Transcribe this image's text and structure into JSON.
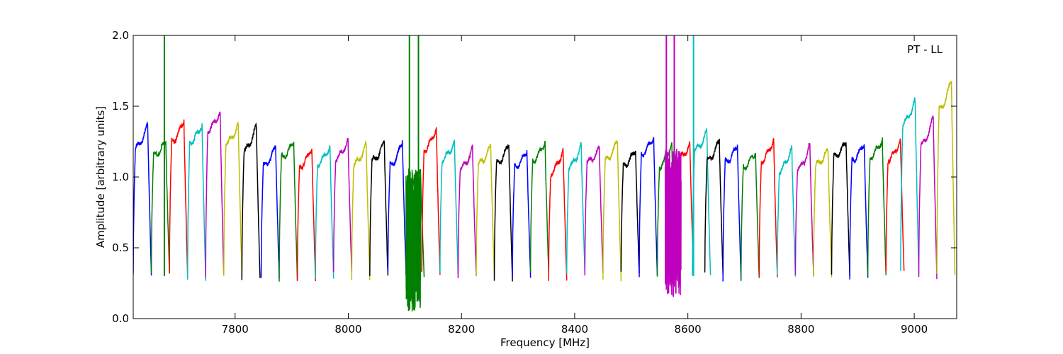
{
  "chart_data": {
    "type": "line",
    "title": "",
    "xlabel": "Frequency [MHz]",
    "ylabel": "Amplitude [arbitrary units]",
    "xlim": [
      7620,
      9075
    ],
    "ylim": [
      0.0,
      2.0
    ],
    "x_ticks": [
      7800,
      8000,
      8200,
      8400,
      8600,
      8800,
      9000
    ],
    "x_tick_labels": [
      "7800",
      "8000",
      "8200",
      "8400",
      "8600",
      "8800",
      "9000"
    ],
    "y_ticks": [
      0.0,
      0.5,
      1.0,
      1.5,
      2.0
    ],
    "y_tick_labels": [
      "0.0",
      "0.5",
      "1.0",
      "1.5",
      "2.0"
    ],
    "grid": false,
    "annotation": "PT - LL",
    "annotation_position": "top-right",
    "channel_width_mhz": 32,
    "series_colors": [
      "#0000ff",
      "#008000",
      "#ff0000",
      "#00bfbf",
      "#bf00bf",
      "#bfbf00",
      "#000000"
    ],
    "channels": [
      {
        "start": 7620,
        "peak": 1.37,
        "color": "#0000ff"
      },
      {
        "start": 7652,
        "peak": 1.25,
        "color": "#008000"
      },
      {
        "start": 7684,
        "peak": 1.4,
        "color": "#ff0000"
      },
      {
        "start": 7716,
        "peak": 1.37,
        "color": "#00bfbf"
      },
      {
        "start": 7748,
        "peak": 1.46,
        "color": "#bf00bf"
      },
      {
        "start": 7780,
        "peak": 1.37,
        "color": "#bfbf00"
      },
      {
        "start": 7812,
        "peak": 1.36,
        "color": "#000000"
      },
      {
        "start": 7846,
        "peak": 1.22,
        "color": "#0000ff"
      },
      {
        "start": 7878,
        "peak": 1.25,
        "color": "#008000"
      },
      {
        "start": 7910,
        "peak": 1.21,
        "color": "#ff0000"
      },
      {
        "start": 7942,
        "peak": 1.22,
        "color": "#00bfbf"
      },
      {
        "start": 7974,
        "peak": 1.26,
        "color": "#bf00bf"
      },
      {
        "start": 8006,
        "peak": 1.23,
        "color": "#bfbf00"
      },
      {
        "start": 8038,
        "peak": 1.25,
        "color": "#000000"
      },
      {
        "start": 8070,
        "peak": 1.25,
        "color": "#0000ff"
      },
      {
        "start": 8102,
        "peak": 1.06,
        "color": "#008000"
      },
      {
        "start": 8130,
        "peak": 1.35,
        "color": "#ff0000"
      },
      {
        "start": 8162,
        "peak": 1.25,
        "color": "#00bfbf"
      },
      {
        "start": 8194,
        "peak": 1.2,
        "color": "#bf00bf"
      },
      {
        "start": 8226,
        "peak": 1.22,
        "color": "#bfbf00"
      },
      {
        "start": 8258,
        "peak": 1.23,
        "color": "#000000"
      },
      {
        "start": 8290,
        "peak": 1.19,
        "color": "#0000ff"
      },
      {
        "start": 8322,
        "peak": 1.25,
        "color": "#008000"
      },
      {
        "start": 8354,
        "peak": 1.19,
        "color": "#ff0000"
      },
      {
        "start": 8386,
        "peak": 1.22,
        "color": "#00bfbf"
      },
      {
        "start": 8418,
        "peak": 1.2,
        "color": "#bf00bf"
      },
      {
        "start": 8450,
        "peak": 1.26,
        "color": "#bfbf00"
      },
      {
        "start": 8482,
        "peak": 1.19,
        "color": "#000000"
      },
      {
        "start": 8514,
        "peak": 1.29,
        "color": "#0000ff"
      },
      {
        "start": 8546,
        "peak": 1.24,
        "color": "#008000"
      },
      {
        "start": 8578,
        "peak": 1.23,
        "color": "#ff0000"
      },
      {
        "start": 8608,
        "peak": 1.32,
        "color": "#00bfbf"
      },
      {
        "start": 8630,
        "peak": 1.26,
        "color": "#000000"
      },
      {
        "start": 8662,
        "peak": 1.22,
        "color": "#0000ff"
      },
      {
        "start": 8694,
        "peak": 1.18,
        "color": "#008000"
      },
      {
        "start": 8726,
        "peak": 1.27,
        "color": "#ff0000"
      },
      {
        "start": 8758,
        "peak": 1.21,
        "color": "#00bfbf"
      },
      {
        "start": 8790,
        "peak": 1.22,
        "color": "#bf00bf"
      },
      {
        "start": 8822,
        "peak": 1.19,
        "color": "#bfbf00"
      },
      {
        "start": 8854,
        "peak": 1.25,
        "color": "#000000"
      },
      {
        "start": 8886,
        "peak": 1.24,
        "color": "#0000ff"
      },
      {
        "start": 8918,
        "peak": 1.27,
        "color": "#008000"
      },
      {
        "start": 8950,
        "peak": 1.26,
        "color": "#ff0000"
      },
      {
        "start": 8976,
        "peak": 1.54,
        "color": "#00bfbf"
      },
      {
        "start": 9008,
        "peak": 1.42,
        "color": "#bf00bf"
      },
      {
        "start": 9040,
        "peak": 1.69,
        "color": "#bfbf00"
      }
    ],
    "rfi_bursts": [
      {
        "x_start": 8102,
        "x_end": 8128,
        "y_min": 0.05,
        "y_max": 1.06,
        "color": "#008000"
      },
      {
        "x_start": 8560,
        "x_end": 8588,
        "y_min": 0.15,
        "y_max": 1.2,
        "color": "#bf00bf"
      }
    ],
    "spikes": [
      {
        "x": 7675,
        "color": "#008000"
      },
      {
        "x": 8108,
        "color": "#008000"
      },
      {
        "x": 8124,
        "color": "#008000"
      },
      {
        "x": 8562,
        "color": "#bf00bf"
      },
      {
        "x": 8576,
        "color": "#bf00bf"
      },
      {
        "x": 8610,
        "color": "#00bfbf"
      }
    ]
  }
}
